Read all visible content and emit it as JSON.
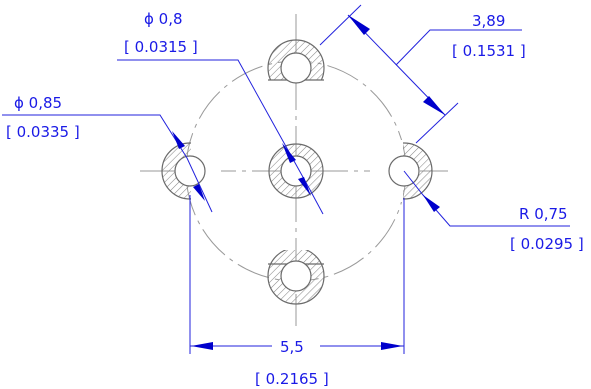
{
  "colors": {
    "dimension": "#1a1ae6",
    "arrow": "#0000cc",
    "leader": "#2222dd",
    "geometry": "#6a6a6a",
    "centerline": "#9a9a9a",
    "hatch": "#8a8a8a",
    "background": "#ffffff"
  },
  "dimensions": {
    "dia_08": {
      "value": "ϕ 0,8",
      "inch": "[ 0.0315 ]"
    },
    "dia_085": {
      "value": "ϕ 0,85",
      "inch": "[ 0.0335 ]"
    },
    "dist_389": {
      "value": "3,89",
      "inch": "[ 0.1531 ]"
    },
    "rad_075": {
      "value": "R 0,75",
      "inch": "[ 0.0295 ]"
    },
    "width_55": {
      "value": "5,5",
      "inch": "[ 0.2165 ]"
    }
  }
}
